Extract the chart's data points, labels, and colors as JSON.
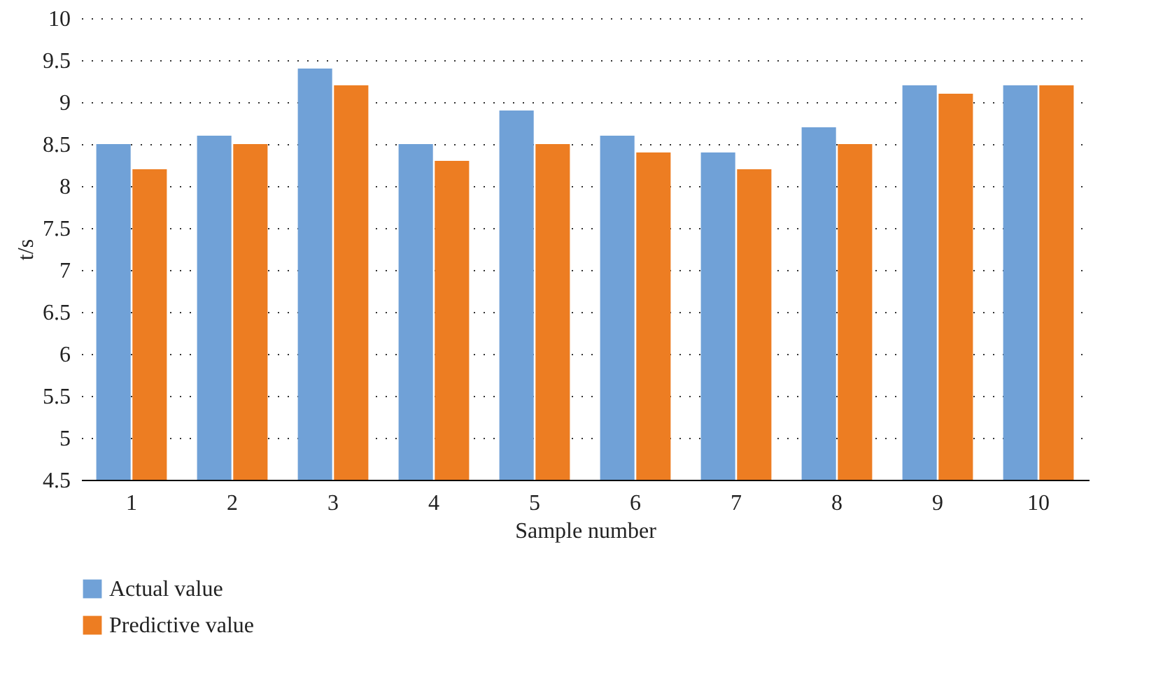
{
  "chart_data": {
    "type": "bar",
    "xlabel": "Sample number",
    "ylabel": "t/s",
    "categories": [
      "1",
      "2",
      "3",
      "4",
      "5",
      "6",
      "7",
      "8",
      "9",
      "10"
    ],
    "series": [
      {
        "name": "Actual value",
        "color": "#70a1d7",
        "values": [
          8.5,
          8.6,
          9.4,
          8.5,
          8.9,
          8.6,
          8.4,
          8.7,
          9.2,
          9.2
        ]
      },
      {
        "name": "Predictive value",
        "color": "#ed7d22",
        "values": [
          8.2,
          8.5,
          9.2,
          8.3,
          8.5,
          8.4,
          8.2,
          8.5,
          9.1,
          9.2
        ]
      }
    ],
    "ylim": [
      4.5,
      10
    ],
    "yticks": [
      4.5,
      5,
      5.5,
      6,
      6.5,
      7,
      7.5,
      8,
      8.5,
      9,
      9.5,
      10
    ],
    "grid": "y",
    "legend": "bottom left"
  }
}
